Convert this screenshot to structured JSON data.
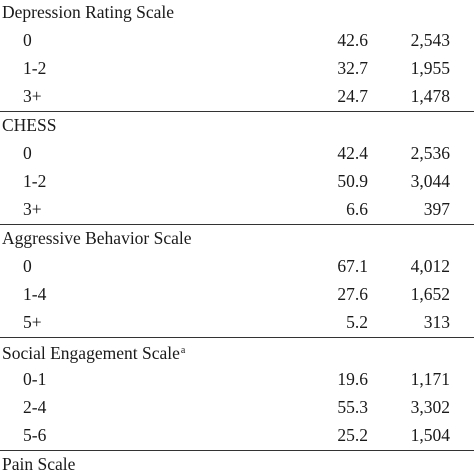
{
  "sections": [
    {
      "heading": "Depression Rating Scale",
      "sup": "",
      "rows": [
        {
          "label": "0",
          "pct": "42.6",
          "count": "2,543"
        },
        {
          "label": "1-2",
          "pct": "32.7",
          "count": "1,955"
        },
        {
          "label": "3+",
          "pct": "24.7",
          "count": "1,478"
        }
      ]
    },
    {
      "heading": "CHESS",
      "sup": "",
      "rows": [
        {
          "label": "0",
          "pct": "42.4",
          "count": "2,536"
        },
        {
          "label": "1-2",
          "pct": "50.9",
          "count": "3,044"
        },
        {
          "label": "3+",
          "pct": "6.6",
          "count": "397"
        }
      ]
    },
    {
      "heading": "Aggressive Behavior Scale",
      "sup": "",
      "rows": [
        {
          "label": "0",
          "pct": "67.1",
          "count": "4,012"
        },
        {
          "label": "1-4",
          "pct": "27.6",
          "count": "1,652"
        },
        {
          "label": "5+",
          "pct": "5.2",
          "count": "313"
        }
      ]
    },
    {
      "heading": "Social Engagement Scale",
      "sup": "a",
      "rows": [
        {
          "label": "0-1",
          "pct": "19.6",
          "count": "1,171"
        },
        {
          "label": "2-4",
          "pct": "55.3",
          "count": "3,302"
        },
        {
          "label": "5-6",
          "pct": "25.2",
          "count": "1,504"
        }
      ]
    },
    {
      "heading": "Pain Scale",
      "sup": "",
      "rows": []
    }
  ]
}
